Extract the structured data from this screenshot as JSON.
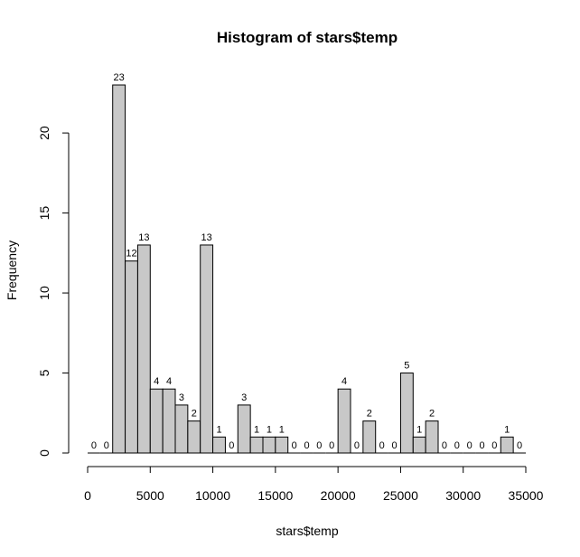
{
  "chart_data": {
    "type": "bar",
    "title": "Histogram of stars$temp",
    "xlabel": "stars$temp",
    "ylabel": "Frequency",
    "bin_width": 1000,
    "bins_start": 0,
    "values": [
      0,
      0,
      23,
      12,
      13,
      4,
      4,
      3,
      2,
      13,
      1,
      0,
      3,
      1,
      1,
      1,
      0,
      0,
      0,
      0,
      4,
      0,
      2,
      0,
      0,
      5,
      1,
      2,
      0,
      0,
      0,
      0,
      0,
      1,
      0
    ],
    "xlim": [
      0,
      35000
    ],
    "ylim": [
      0,
      23
    ],
    "x_ticks": [
      0,
      5000,
      10000,
      15000,
      20000,
      25000,
      30000,
      35000
    ],
    "y_ticks": [
      0,
      5,
      10,
      15,
      20
    ],
    "bar_color": "#c8c8c8",
    "grid": false
  }
}
